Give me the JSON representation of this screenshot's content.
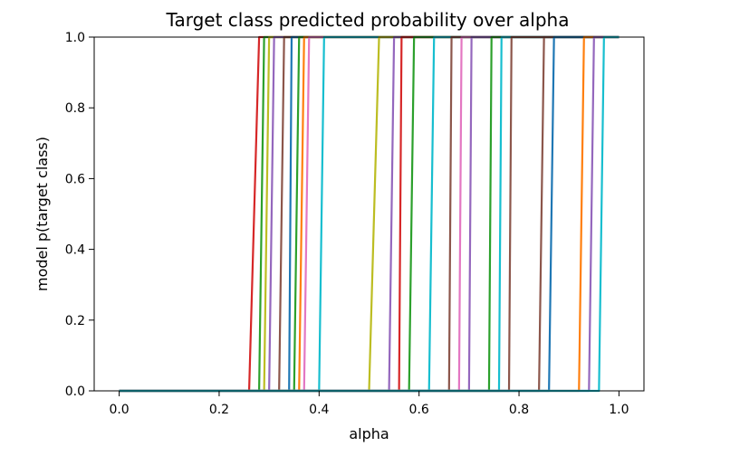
{
  "chart_data": {
    "type": "line",
    "title": "Target class predicted probability over alpha",
    "xlabel": "alpha",
    "ylabel": "model p(target class)",
    "xlim": [
      -0.05,
      1.05
    ],
    "ylim": [
      0.0,
      1.0
    ],
    "xticks": [
      0.0,
      0.2,
      0.4,
      0.6,
      0.8,
      1.0
    ],
    "xtick_labels": [
      "0.0",
      "0.2",
      "0.4",
      "0.6",
      "0.8",
      "1.0"
    ],
    "yticks": [
      0.0,
      0.2,
      0.4,
      0.6,
      0.8,
      1.0
    ],
    "ytick_labels": [
      "0.0",
      "0.2",
      "0.4",
      "0.6",
      "0.8",
      "1.0"
    ],
    "grid": false,
    "legend": false,
    "series": [
      {
        "color": "#d62728",
        "x": [
          0.0,
          0.26,
          0.28,
          1.0
        ],
        "y": [
          0.0,
          0.0,
          1.0,
          1.0
        ]
      },
      {
        "color": "#2ca02c",
        "x": [
          0.0,
          0.28,
          0.29,
          1.0
        ],
        "y": [
          0.0,
          0.0,
          1.0,
          1.0
        ]
      },
      {
        "color": "#bcbd22",
        "x": [
          0.0,
          0.29,
          0.3,
          1.0
        ],
        "y": [
          0.0,
          0.0,
          1.0,
          1.0
        ]
      },
      {
        "color": "#9467bd",
        "x": [
          0.0,
          0.3,
          0.31,
          1.0
        ],
        "y": [
          0.0,
          0.0,
          1.0,
          1.0
        ]
      },
      {
        "color": "#8c564b",
        "x": [
          0.0,
          0.32,
          0.33,
          1.0
        ],
        "y": [
          0.0,
          0.0,
          1.0,
          1.0
        ]
      },
      {
        "color": "#1f77b4",
        "x": [
          0.0,
          0.34,
          0.345,
          1.0
        ],
        "y": [
          0.0,
          0.0,
          1.0,
          1.0
        ]
      },
      {
        "color": "#2ca02c",
        "x": [
          0.0,
          0.35,
          0.36,
          1.0
        ],
        "y": [
          0.0,
          0.0,
          1.0,
          1.0
        ]
      },
      {
        "color": "#ff7f0e",
        "x": [
          0.0,
          0.36,
          0.37,
          1.0
        ],
        "y": [
          0.0,
          0.0,
          1.0,
          1.0
        ]
      },
      {
        "color": "#e377c2",
        "x": [
          0.0,
          0.37,
          0.38,
          1.0
        ],
        "y": [
          0.0,
          0.0,
          1.0,
          1.0
        ]
      },
      {
        "color": "#17becf",
        "x": [
          0.0,
          0.4,
          0.41,
          1.0
        ],
        "y": [
          0.0,
          0.0,
          1.0,
          1.0
        ]
      },
      {
        "color": "#bcbd22",
        "x": [
          0.0,
          0.5,
          0.52,
          1.0
        ],
        "y": [
          0.0,
          0.0,
          1.0,
          1.0
        ]
      },
      {
        "color": "#9467bd",
        "x": [
          0.0,
          0.54,
          0.55,
          1.0
        ],
        "y": [
          0.0,
          0.0,
          1.0,
          1.0
        ]
      },
      {
        "color": "#d62728",
        "x": [
          0.0,
          0.56,
          0.565,
          1.0
        ],
        "y": [
          0.0,
          0.0,
          1.0,
          1.0
        ]
      },
      {
        "color": "#2ca02c",
        "x": [
          0.0,
          0.58,
          0.59,
          1.0
        ],
        "y": [
          0.0,
          0.0,
          1.0,
          1.0
        ]
      },
      {
        "color": "#17becf",
        "x": [
          0.0,
          0.62,
          0.63,
          1.0
        ],
        "y": [
          0.0,
          0.0,
          1.0,
          1.0
        ]
      },
      {
        "color": "#8c564b",
        "x": [
          0.0,
          0.66,
          0.665,
          1.0
        ],
        "y": [
          0.0,
          0.0,
          1.0,
          1.0
        ]
      },
      {
        "color": "#e377c2",
        "x": [
          0.0,
          0.68,
          0.685,
          1.0
        ],
        "y": [
          0.0,
          0.0,
          1.0,
          1.0
        ]
      },
      {
        "color": "#9467bd",
        "x": [
          0.0,
          0.7,
          0.705,
          1.0
        ],
        "y": [
          0.0,
          0.0,
          1.0,
          1.0
        ]
      },
      {
        "color": "#2ca02c",
        "x": [
          0.0,
          0.74,
          0.745,
          1.0
        ],
        "y": [
          0.0,
          0.0,
          1.0,
          1.0
        ]
      },
      {
        "color": "#17becf",
        "x": [
          0.0,
          0.76,
          0.765,
          1.0
        ],
        "y": [
          0.0,
          0.0,
          1.0,
          1.0
        ]
      },
      {
        "color": "#8c564b",
        "x": [
          0.0,
          0.78,
          0.785,
          1.0
        ],
        "y": [
          0.0,
          0.0,
          1.0,
          1.0
        ]
      },
      {
        "color": "#8c564b",
        "x": [
          0.0,
          0.84,
          0.85,
          1.0
        ],
        "y": [
          0.0,
          0.0,
          1.0,
          1.0
        ]
      },
      {
        "color": "#1f77b4",
        "x": [
          0.0,
          0.86,
          0.87,
          1.0
        ],
        "y": [
          0.0,
          0.0,
          1.0,
          1.0
        ]
      },
      {
        "color": "#ff7f0e",
        "x": [
          0.0,
          0.92,
          0.93,
          1.0
        ],
        "y": [
          0.0,
          0.0,
          1.0,
          1.0
        ]
      },
      {
        "color": "#9467bd",
        "x": [
          0.0,
          0.94,
          0.95,
          1.0
        ],
        "y": [
          0.0,
          0.0,
          1.0,
          1.0
        ]
      },
      {
        "color": "#17becf",
        "x": [
          0.0,
          0.96,
          0.97,
          1.0
        ],
        "y": [
          0.0,
          0.0,
          1.0,
          1.0
        ]
      }
    ]
  }
}
